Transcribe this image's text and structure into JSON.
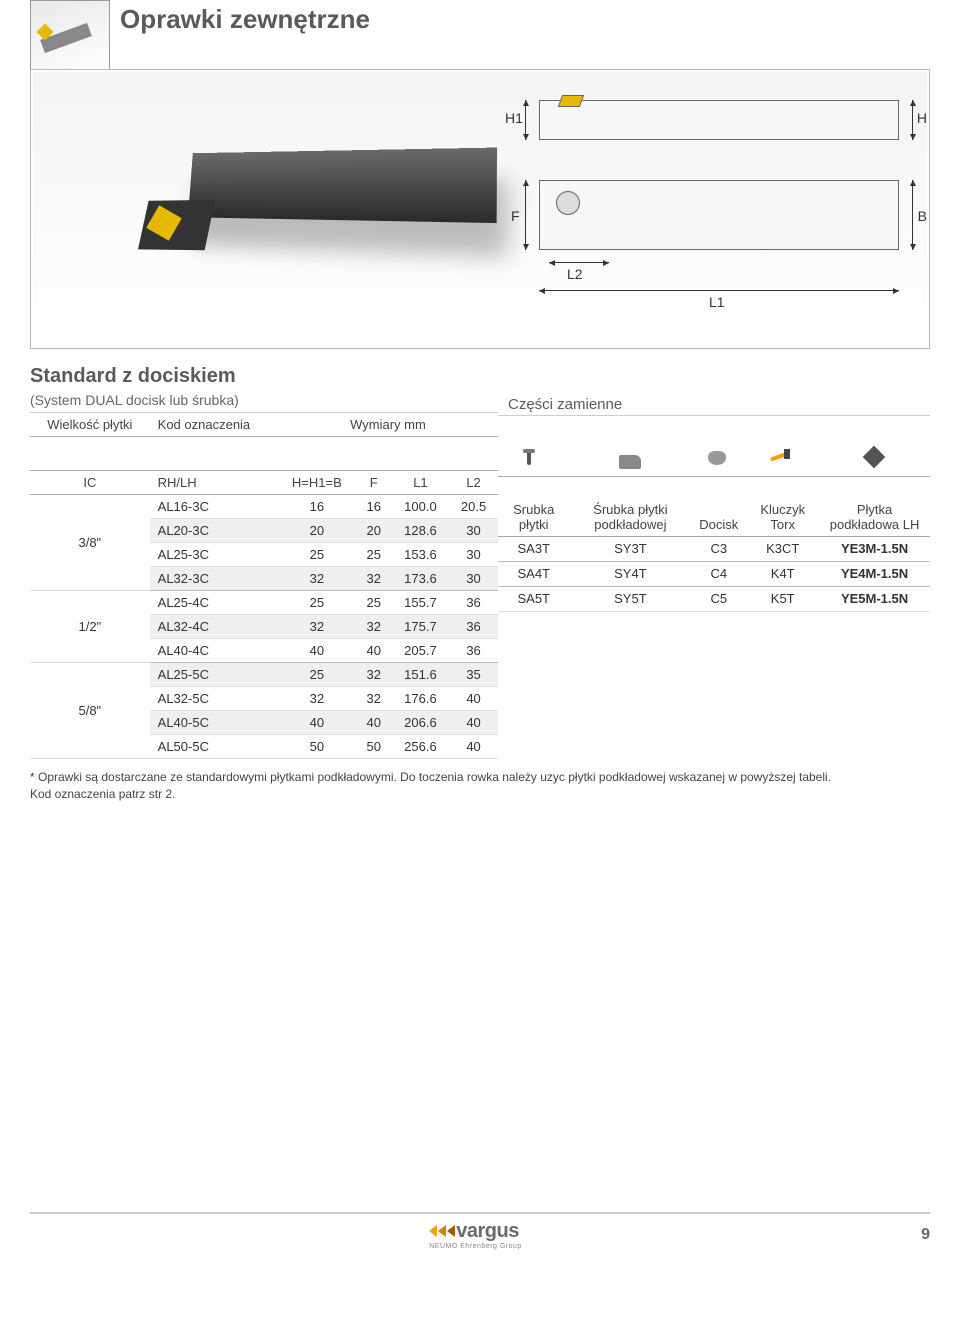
{
  "page": {
    "title": "Oprawki zewnętrzne",
    "dims": {
      "H1": "H1",
      "H": "H",
      "F": "F",
      "B": "B",
      "L2": "L2",
      "L1": "L1"
    },
    "section_title": "Standard z dociskiem",
    "section_sub": "(System DUAL docisk lub śrubka)",
    "parts_title": "Części zamienne",
    "left_headers": {
      "ic_group": "Wielkość płytki",
      "code_group": "Kod oznaczenia",
      "dims_group": "Wymiary mm",
      "ic": "IC",
      "rhlh": "RH/LH",
      "hhb": "H=H1=B",
      "f": "F",
      "l1": "L1",
      "l2": "L2"
    },
    "right_headers": {
      "srubka": "Srubka płytki",
      "srubka_pod": "Śrubka płytki podkładowej",
      "docisk": "Docisk",
      "klucz": "Kluczyk Torx",
      "plytka": "Płytka podkładowa LH"
    },
    "rows": [
      {
        "ic": "3/8\"",
        "code": "AL16-3C",
        "h": "16",
        "f": "16",
        "l1": "100.0",
        "l2": "20.5",
        "alt": false
      },
      {
        "ic": "",
        "code": "AL20-3C",
        "h": "20",
        "f": "20",
        "l1": "128.6",
        "l2": "30",
        "alt": true
      },
      {
        "ic": "",
        "code": "AL25-3C",
        "h": "25",
        "f": "25",
        "l1": "153.6",
        "l2": "30",
        "alt": false
      },
      {
        "ic": "",
        "code": "AL32-3C",
        "h": "32",
        "f": "32",
        "l1": "173.6",
        "l2": "30",
        "alt": true
      },
      {
        "ic": "1/2\"",
        "code": "AL25-4C",
        "h": "25",
        "f": "25",
        "l1": "155.7",
        "l2": "36",
        "alt": false
      },
      {
        "ic": "",
        "code": "AL32-4C",
        "h": "32",
        "f": "32",
        "l1": "175.7",
        "l2": "36",
        "alt": true
      },
      {
        "ic": "",
        "code": "AL40-4C",
        "h": "40",
        "f": "40",
        "l1": "205.7",
        "l2": "36",
        "alt": false
      },
      {
        "ic": "5/8\"",
        "code": "AL25-5C",
        "h": "25",
        "f": "32",
        "l1": "151.6",
        "l2": "35",
        "alt": true
      },
      {
        "ic": "",
        "code": "AL32-5C",
        "h": "32",
        "f": "32",
        "l1": "176.6",
        "l2": "40",
        "alt": false
      },
      {
        "ic": "",
        "code": "AL40-5C",
        "h": "40",
        "f": "40",
        "l1": "206.6",
        "l2": "40",
        "alt": true
      },
      {
        "ic": "",
        "code": "AL50-5C",
        "h": "50",
        "f": "50",
        "l1": "256.6",
        "l2": "40",
        "alt": false
      }
    ],
    "parts_groups": [
      {
        "span": 4,
        "srubka": "SA3T",
        "srubka_pod": "SY3T",
        "docisk": "C3",
        "klucz": "K3CT",
        "plytka": "YE3M-1.5N"
      },
      {
        "span": 3,
        "srubka": "SA4T",
        "srubka_pod": "SY4T",
        "docisk": "C4",
        "klucz": "K4T",
        "plytka": "YE4M-1.5N"
      },
      {
        "span": 4,
        "srubka": "SA5T",
        "srubka_pod": "SY5T",
        "docisk": "C5",
        "klucz": "K5T",
        "plytka": "YE5M-1.5N"
      }
    ],
    "footnote_1": "* Oprawki są dostarczane ze standardowymi płytkami podkładowymi. Do toczenia rowka należy uzyc płytki podkładowej wskazanej  w powyższej tabeli.",
    "footnote_2": "   Kod oznaczenia patrz str 2.",
    "logo_text": "vargus",
    "logo_sub": "NEUMO Ehrenberg Group",
    "page_number": "9"
  }
}
